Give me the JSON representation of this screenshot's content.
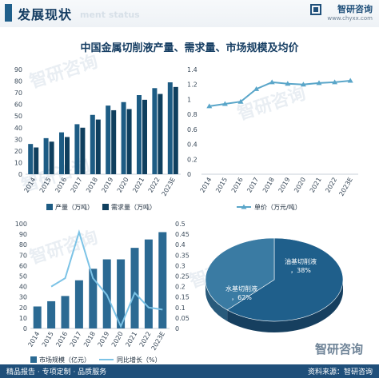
{
  "header": {
    "title": "发展现状",
    "watermark": "ment status",
    "brand_name": "智研咨询",
    "brand_url": "www.chyxx.com"
  },
  "main_title": "中国金属切削液产量、需求量、市场规模及均价",
  "footer": {
    "left": "精品报告 · 专项定制 · 品质服务",
    "right": "资料来源：智研咨询",
    "brand": "智研咨询"
  },
  "colors": {
    "production": "#1d5c84",
    "demand": "#0f3f5e",
    "price_line": "#5aa6c9",
    "market_bar": "#2b6a93",
    "growth_line": "#7cc3e6",
    "pie_water": "#1f5f8b",
    "pie_oil": "#3a7ba3"
  },
  "chart_data": [
    {
      "type": "bar",
      "categories": [
        "2014",
        "2015",
        "2016",
        "2017",
        "2018",
        "2019",
        "2020",
        "2021",
        "2022",
        "2023E"
      ],
      "series": [
        {
          "name": "产量（万吨）",
          "values": [
            26,
            31,
            36,
            43,
            51,
            59,
            62,
            68,
            74,
            79
          ]
        },
        {
          "name": "需求量（万吨）",
          "values": [
            23,
            28,
            32,
            40,
            47,
            55,
            56,
            64,
            69,
            75
          ]
        }
      ],
      "ylim": [
        0,
        90
      ],
      "yticks": [
        0,
        10,
        20,
        30,
        40,
        50,
        60,
        70,
        80,
        90
      ],
      "secondary_yticks": [
        0,
        0.2,
        0.4,
        0.6,
        0.8,
        1,
        1.2,
        1.4
      ],
      "legend": "bottom"
    },
    {
      "type": "line",
      "categories": [
        "2014",
        "2015",
        "2016",
        "2017",
        "2018",
        "2019",
        "2020",
        "2021",
        "2022",
        "2023E"
      ],
      "series": [
        {
          "name": "单价（万元/吨）",
          "values": [
            0.91,
            0.94,
            0.97,
            1.14,
            1.23,
            1.21,
            1.2,
            1.22,
            1.23,
            1.25
          ]
        }
      ],
      "ylim": [
        0,
        1.4
      ],
      "legend": "bottom"
    },
    {
      "type": "bar",
      "categories": [
        "2014",
        "2015",
        "2016",
        "2017",
        "2018",
        "2019",
        "2020",
        "2021",
        "2022",
        "2023E"
      ],
      "series": [
        {
          "name": "市场规模（亿元）",
          "values": [
            21,
            26,
            31,
            46,
            57,
            66,
            66,
            77,
            85,
            92
          ]
        },
        {
          "name": "同比增长（%）",
          "type": "line",
          "values": [
            null,
            0.2,
            0.24,
            0.46,
            0.24,
            0.16,
            0.01,
            0.17,
            0.1,
            0.09
          ]
        }
      ],
      "ylim": [
        0,
        100
      ],
      "yticks": [
        0,
        10,
        20,
        30,
        40,
        50,
        60,
        70,
        80,
        90,
        100
      ],
      "secondary_ylim": [
        0,
        0.5
      ],
      "secondary_yticks": [
        0,
        0.05,
        0.1,
        0.15,
        0.2,
        0.25,
        0.3,
        0.35,
        0.4,
        0.45,
        0.5
      ],
      "legend": "bottom"
    },
    {
      "type": "pie",
      "slices": [
        {
          "label": "水基切削液",
          "value": 62,
          "display": "水基切削液，62%"
        },
        {
          "label": "油基切削液",
          "value": 38,
          "display": "油基切削液，38%"
        }
      ]
    }
  ]
}
